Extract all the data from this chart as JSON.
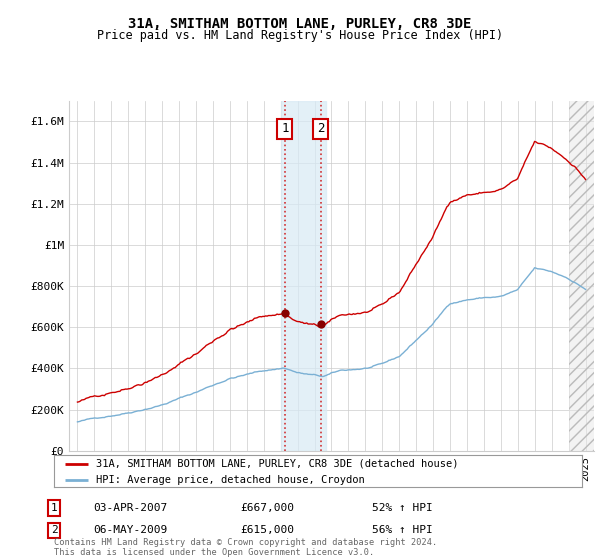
{
  "title": "31A, SMITHAM BOTTOM LANE, PURLEY, CR8 3DE",
  "subtitle": "Price paid vs. HM Land Registry's House Price Index (HPI)",
  "ylim": [
    0,
    1700000
  ],
  "yticks": [
    0,
    200000,
    400000,
    600000,
    800000,
    1000000,
    1200000,
    1400000,
    1600000
  ],
  "ytick_labels": [
    "£0",
    "£200K",
    "£400K",
    "£600K",
    "£800K",
    "£1M",
    "£1.2M",
    "£1.4M",
    "£1.6M"
  ],
  "line1_color": "#cc0000",
  "line2_color": "#7ab0d4",
  "purchase1_year": 2007.25,
  "purchase1_price": 667000,
  "purchase2_year": 2009.37,
  "purchase2_price": 615000,
  "shade_x1": 2007.0,
  "shade_x2": 2009.7,
  "hatch_x": 2024.0,
  "xmin": 1994.5,
  "xmax": 2025.5,
  "legend_line1": "31A, SMITHAM BOTTOM LANE, PURLEY, CR8 3DE (detached house)",
  "legend_line2": "HPI: Average price, detached house, Croydon",
  "ann1_date": "03-APR-2007",
  "ann1_price": "£667,000",
  "ann1_hpi": "52% ↑ HPI",
  "ann2_date": "06-MAY-2009",
  "ann2_price": "£615,000",
  "ann2_hpi": "56% ↑ HPI",
  "footer": "Contains HM Land Registry data © Crown copyright and database right 2024.\nThis data is licensed under the Open Government Licence v3.0.",
  "background_color": "#ffffff",
  "grid_color": "#cccccc"
}
